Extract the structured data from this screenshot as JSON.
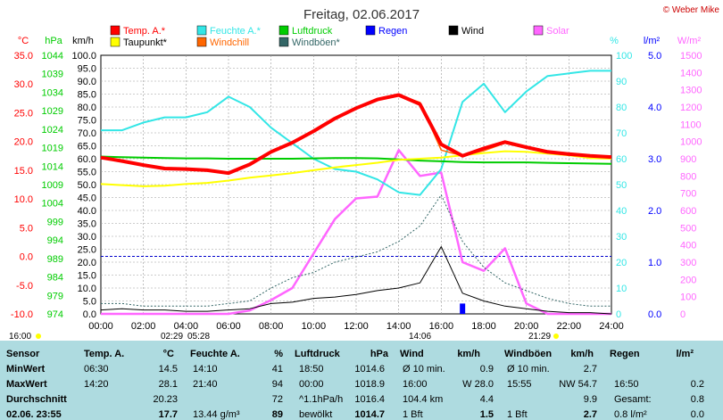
{
  "title": "Freitag, 02.06.2017",
  "copyright": "© Weber Mike",
  "legend": [
    {
      "label": "Temp. A.*",
      "color": "#ff0000"
    },
    {
      "label": "Feuchte A.*",
      "color": "#33e6e6"
    },
    {
      "label": "Luftdruck",
      "color": "#00cc00"
    },
    {
      "label": "Regen",
      "color": "#0000ff"
    },
    {
      "label": "Wind",
      "color": "#000000"
    },
    {
      "label": "Solar",
      "color": "#ff66ff"
    },
    {
      "label": "Taupunkt*",
      "color": "#ffff00"
    },
    {
      "label": "Windchill",
      "color": "#ff6600"
    },
    {
      "label": "Windböen*",
      "color": "#336666"
    }
  ],
  "axis_units": {
    "temp": "°C",
    "pressure": "hPa",
    "wind": "km/h",
    "humidity": "%",
    "rain": "l/m²",
    "solar": "W/m²"
  },
  "axis_colors": {
    "temp": "#ff0000",
    "pressure": "#00cc00",
    "wind": "#000000",
    "humidity": "#33e6e6",
    "rain": "#0000ff",
    "solar": "#ff66ff"
  },
  "axis_ticks": {
    "temp": [
      "35.0",
      "30.0",
      "25.0",
      "20.0",
      "15.0",
      "10.0",
      "5.0",
      "0.0",
      "-5.0",
      "-10.0"
    ],
    "pressure": [
      "1044",
      "1039",
      "1034",
      "1029",
      "1024",
      "1019",
      "1014",
      "1009",
      "1004",
      "999",
      "994",
      "989",
      "984",
      "979",
      "974"
    ],
    "wind": [
      "100.0",
      "95.0",
      "90.0",
      "85.0",
      "80.0",
      "75.0",
      "70.0",
      "65.0",
      "60.0",
      "55.0",
      "50.0",
      "45.0",
      "40.0",
      "35.0",
      "30.0",
      "25.0",
      "20.0",
      "15.0",
      "10.0",
      "5.0",
      "0.0"
    ],
    "humidity": [
      "100",
      "90",
      "80",
      "70",
      "60",
      "50",
      "40",
      "30",
      "20",
      "10",
      "0"
    ],
    "rain": [
      "5.0",
      "4.0",
      "3.0",
      "2.0",
      "1.0",
      "0.0"
    ],
    "solar": [
      "1500",
      "1400",
      "1300",
      "1200",
      "1100",
      "1000",
      "900",
      "800",
      "700",
      "600",
      "500",
      "400",
      "300",
      "200",
      "100",
      "0"
    ],
    "time": [
      "00:00",
      "02:00",
      "04:00",
      "06:00",
      "08:00",
      "10:00",
      "12:00",
      "14:00",
      "16:00",
      "18:00",
      "20:00",
      "22:00",
      "24:00"
    ]
  },
  "time_markers": [
    "16:00",
    "02:29",
    "05:28",
    "14:06",
    "21:29"
  ],
  "chart_data": {
    "type": "line",
    "x_unit": "hour",
    "x": [
      0,
      1,
      2,
      3,
      4,
      5,
      6,
      7,
      8,
      9,
      10,
      11,
      12,
      13,
      14,
      15,
      16,
      17,
      18,
      19,
      20,
      21,
      22,
      23,
      24
    ],
    "series": [
      {
        "name": "Temp. A.*",
        "unit": "°C",
        "values": [
          17.2,
          16.6,
          15.9,
          15.3,
          15.2,
          15.0,
          14.5,
          16.0,
          18.2,
          19.8,
          21.8,
          24.0,
          25.8,
          27.3,
          28.1,
          26.5,
          19.5,
          17.5,
          18.8,
          19.9,
          19.0,
          18.2,
          17.8,
          17.5,
          17.3
        ]
      },
      {
        "name": "Windchill",
        "unit": "°C",
        "values": [
          17.2,
          16.6,
          15.9,
          15.3,
          15.2,
          15.0,
          14.5,
          16.0,
          18.2,
          19.8,
          21.8,
          24.0,
          25.8,
          27.3,
          28.1,
          26.8,
          18.5,
          17.5,
          18.4,
          19.7,
          18.8,
          18.0,
          17.6,
          17.4,
          17.2
        ]
      },
      {
        "name": "Taupunkt*",
        "unit": "°C",
        "values": [
          12.6,
          12.4,
          12.2,
          12.3,
          12.6,
          12.8,
          13.2,
          13.7,
          14.1,
          14.5,
          15.0,
          15.5,
          15.9,
          16.3,
          16.8,
          17.0,
          17.2,
          17.6,
          18.0,
          18.3,
          18.2,
          17.9,
          17.6,
          17.1,
          17.0
        ]
      },
      {
        "name": "Feuchte A.*",
        "unit": "%",
        "values": [
          71,
          71,
          74,
          76,
          76,
          78,
          84,
          80,
          72,
          66,
          60,
          56,
          55,
          52,
          47,
          46,
          56,
          82,
          89,
          78,
          86,
          92,
          93,
          94,
          94
        ]
      },
      {
        "name": "Luftdruck",
        "unit": "hPa",
        "values": [
          1016.6,
          1016.4,
          1016.3,
          1016.2,
          1016.1,
          1016.1,
          1016.0,
          1016.0,
          1016.0,
          1016.0,
          1016.1,
          1016.2,
          1016.2,
          1016.1,
          1015.8,
          1015.5,
          1015.3,
          1015.1,
          1015.0,
          1015.0,
          1015.0,
          1014.9,
          1014.8,
          1014.7,
          1014.6
        ]
      },
      {
        "name": "Wind",
        "unit": "km/h",
        "values": [
          1.5,
          2,
          1.5,
          1.5,
          1,
          1,
          1.5,
          2,
          4,
          4.5,
          6,
          6.5,
          7.5,
          9,
          10,
          12,
          26,
          8,
          5,
          3,
          2,
          1,
          0.5,
          0.5,
          0
        ]
      },
      {
        "name": "Windböen*",
        "unit": "km/h",
        "values": [
          4,
          4,
          3,
          3,
          3,
          3,
          4,
          5,
          10,
          14,
          16,
          20,
          22,
          24,
          28,
          34,
          46,
          28,
          18,
          12,
          9,
          6,
          4,
          3,
          3
        ]
      },
      {
        "name": "Solar",
        "unit": "W/m²",
        "values": [
          0,
          0,
          0,
          0,
          0,
          0,
          0,
          20,
          80,
          150,
          350,
          550,
          670,
          680,
          950,
          800,
          820,
          300,
          250,
          380,
          60,
          0,
          0,
          0,
          0
        ]
      },
      {
        "name": "Regen",
        "unit": "l/m²",
        "values": [
          0,
          0,
          0,
          0,
          0,
          0,
          0,
          0,
          0,
          0,
          0,
          0,
          0,
          0,
          0,
          0,
          0,
          0.2,
          0,
          0,
          0,
          0,
          0,
          0,
          0
        ]
      }
    ],
    "axes": {
      "temp": {
        "min": -10,
        "max": 35
      },
      "pressure": {
        "min": 974,
        "max": 1044
      },
      "wind": {
        "min": 0,
        "max": 100
      },
      "humidity": {
        "min": 0,
        "max": 100
      },
      "rain": {
        "min": 0,
        "max": 5
      },
      "solar": {
        "min": 0,
        "max": 1500
      }
    },
    "grid": true
  },
  "stats": {
    "headers": [
      "Sensor",
      "Temp. A.",
      "°C",
      "Feuchte A.",
      "%",
      "Luftdruck",
      "hPa",
      "Wind",
      "km/h",
      "Windböen",
      "km/h",
      "Regen",
      "l/m²"
    ],
    "rows": [
      {
        "label": "MinWert",
        "cells": [
          "06:30",
          "14.5",
          "14:10",
          "41",
          "18:50",
          "1014.6",
          "Ø 10 min.",
          "0.9",
          "Ø 10 min.",
          "2.7",
          "",
          ""
        ]
      },
      {
        "label": "MaxWert",
        "cells": [
          "14:20",
          "28.1",
          "21:40",
          "94",
          "00:00",
          "1018.9",
          "16:00",
          "W 28.0",
          "15:55",
          "NW 54.7",
          "16:50",
          "0.2"
        ]
      },
      {
        "label": "Durchschnitt",
        "cells": [
          "",
          "20.23",
          "",
          "72",
          "^1.1hPa/h",
          "1016.4",
          "104.4 km",
          "4.4",
          "",
          "9.9",
          "Gesamt:",
          "0.8"
        ]
      },
      {
        "label": "02.06. 23:55",
        "cells": [
          "",
          "17.7",
          "13.44 g/m³",
          "89",
          "bewölkt",
          "1014.7",
          "1 Bft",
          "1.5",
          "1 Bft",
          "2.7",
          "0.8 l/m²",
          "0.0"
        ]
      }
    ]
  }
}
